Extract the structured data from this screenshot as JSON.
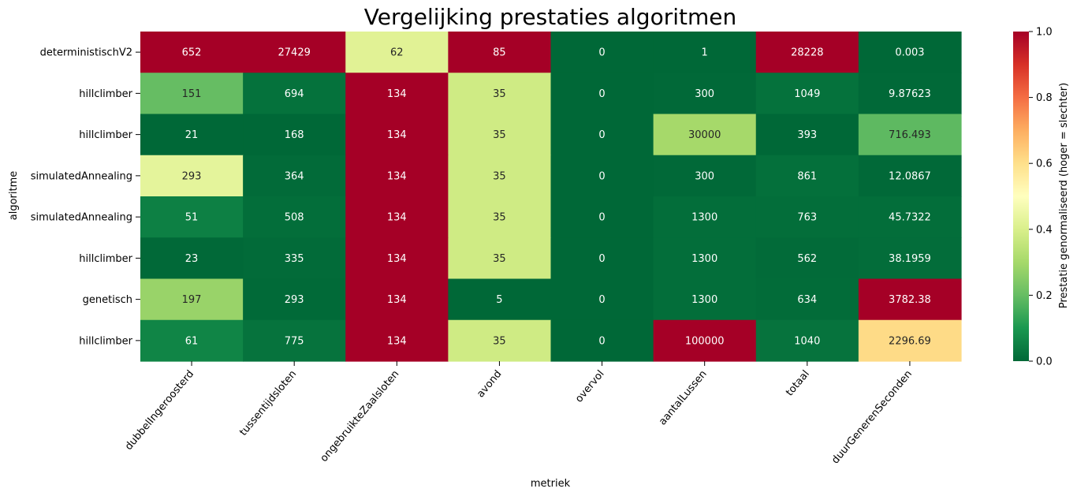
{
  "chart_data": {
    "type": "heatmap",
    "title": "Vergelijking prestaties algoritmen",
    "xlabel": "metriek",
    "ylabel": "algoritme",
    "columns": [
      "dubbelIngeroosterd",
      "tussentijdsloten",
      "ongebruikteZaalsloten",
      "avond",
      "overvol",
      "aantalLussen",
      "totaal",
      "duurGenerenSeconden"
    ],
    "rows": [
      "deterministischV2",
      "hillclimber",
      "hillclimber",
      "simulatedAnnealing",
      "simulatedAnnealing",
      "hillclimber",
      "genetisch",
      "hillclimber"
    ],
    "labels": [
      [
        "652",
        "27429",
        "62",
        "85",
        "0",
        "1",
        "28228",
        "0.003"
      ],
      [
        "151",
        "694",
        "134",
        "35",
        "0",
        "300",
        "1049",
        "9.87623"
      ],
      [
        "21",
        "168",
        "134",
        "35",
        "0",
        "30000",
        "393",
        "716.493"
      ],
      [
        "293",
        "364",
        "134",
        "35",
        "0",
        "300",
        "861",
        "12.0867"
      ],
      [
        "51",
        "508",
        "134",
        "35",
        "0",
        "1300",
        "763",
        "45.7322"
      ],
      [
        "23",
        "335",
        "134",
        "35",
        "0",
        "1300",
        "562",
        "38.1959"
      ],
      [
        "197",
        "293",
        "134",
        "5",
        "0",
        "1300",
        "634",
        "3782.38"
      ],
      [
        "61",
        "775",
        "134",
        "35",
        "0",
        "100000",
        "1040",
        "2296.69"
      ]
    ],
    "normalized": [
      [
        1.0,
        1.0,
        0.42,
        1.0,
        0.0,
        0.0,
        1.0,
        0.0
      ],
      [
        0.2,
        0.02,
        1.0,
        0.38,
        0.0,
        0.003,
        0.02,
        0.003
      ],
      [
        0.0,
        0.0,
        1.0,
        0.38,
        0.0,
        0.3,
        0.0,
        0.19
      ],
      [
        0.43,
        0.007,
        1.0,
        0.38,
        0.0,
        0.003,
        0.017,
        0.003
      ],
      [
        0.05,
        0.013,
        1.0,
        0.38,
        0.0,
        0.013,
        0.013,
        0.012
      ],
      [
        0.003,
        0.006,
        1.0,
        0.38,
        0.0,
        0.013,
        0.006,
        0.01
      ],
      [
        0.28,
        0.005,
        1.0,
        0.0,
        0.0,
        0.013,
        0.009,
        1.0
      ],
      [
        0.06,
        0.022,
        1.0,
        0.38,
        0.0,
        1.0,
        0.023,
        0.61
      ]
    ],
    "colorbar": {
      "label": "Prestatie genormaliseerd (hoger = slechter)",
      "range": [
        0.0,
        1.0
      ],
      "ticks": [
        "0.0",
        "0.2",
        "0.4",
        "0.6",
        "0.8",
        "1.0"
      ],
      "colormap": "RdYlGn reversed"
    },
    "annotation_colors": {
      "on_dark": "#ffffff",
      "on_light": "#262626"
    },
    "grid": false
  }
}
